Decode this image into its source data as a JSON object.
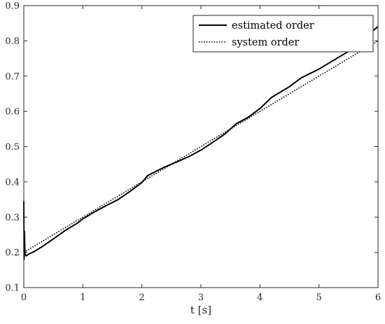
{
  "chart_data": {
    "type": "line",
    "title": "",
    "xlabel": "t [s]",
    "ylabel": "",
    "xlim": [
      0,
      6
    ],
    "ylim": [
      0.1,
      0.9
    ],
    "xticks": [
      "0",
      "1",
      "2",
      "3",
      "4",
      "5",
      "6"
    ],
    "yticks": [
      "0.1",
      "0.2",
      "0.3",
      "0.4",
      "0.5",
      "0.6",
      "0.7",
      "0.8",
      "0.9"
    ],
    "grid": false,
    "legend_position": "top-right",
    "series": [
      {
        "name": "estimated order",
        "style": "solid",
        "color": "#000000",
        "x": [
          0,
          0.005,
          0.01,
          0.02,
          0.04,
          0.08,
          0.15,
          0.3,
          0.5,
          0.7,
          0.9,
          1.0,
          1.2,
          1.4,
          1.6,
          1.8,
          2.0,
          2.1,
          2.3,
          2.4,
          2.6,
          2.8,
          3.0,
          3.2,
          3.4,
          3.6,
          3.8,
          4.0,
          4.2,
          4.5,
          4.7,
          5.0,
          5.3,
          5.6,
          5.8,
          6.0
        ],
        "y": [
          0.345,
          0.18,
          0.26,
          0.195,
          0.19,
          0.195,
          0.2,
          0.215,
          0.238,
          0.262,
          0.282,
          0.295,
          0.315,
          0.333,
          0.35,
          0.373,
          0.398,
          0.418,
          0.435,
          0.443,
          0.457,
          0.472,
          0.49,
          0.512,
          0.535,
          0.565,
          0.583,
          0.608,
          0.64,
          0.67,
          0.695,
          0.72,
          0.75,
          0.78,
          0.815,
          0.84
        ]
      },
      {
        "name": "system order",
        "style": "dotted",
        "color": "#000000",
        "x": [
          0,
          6
        ],
        "y": [
          0.2,
          0.8
        ]
      }
    ]
  }
}
